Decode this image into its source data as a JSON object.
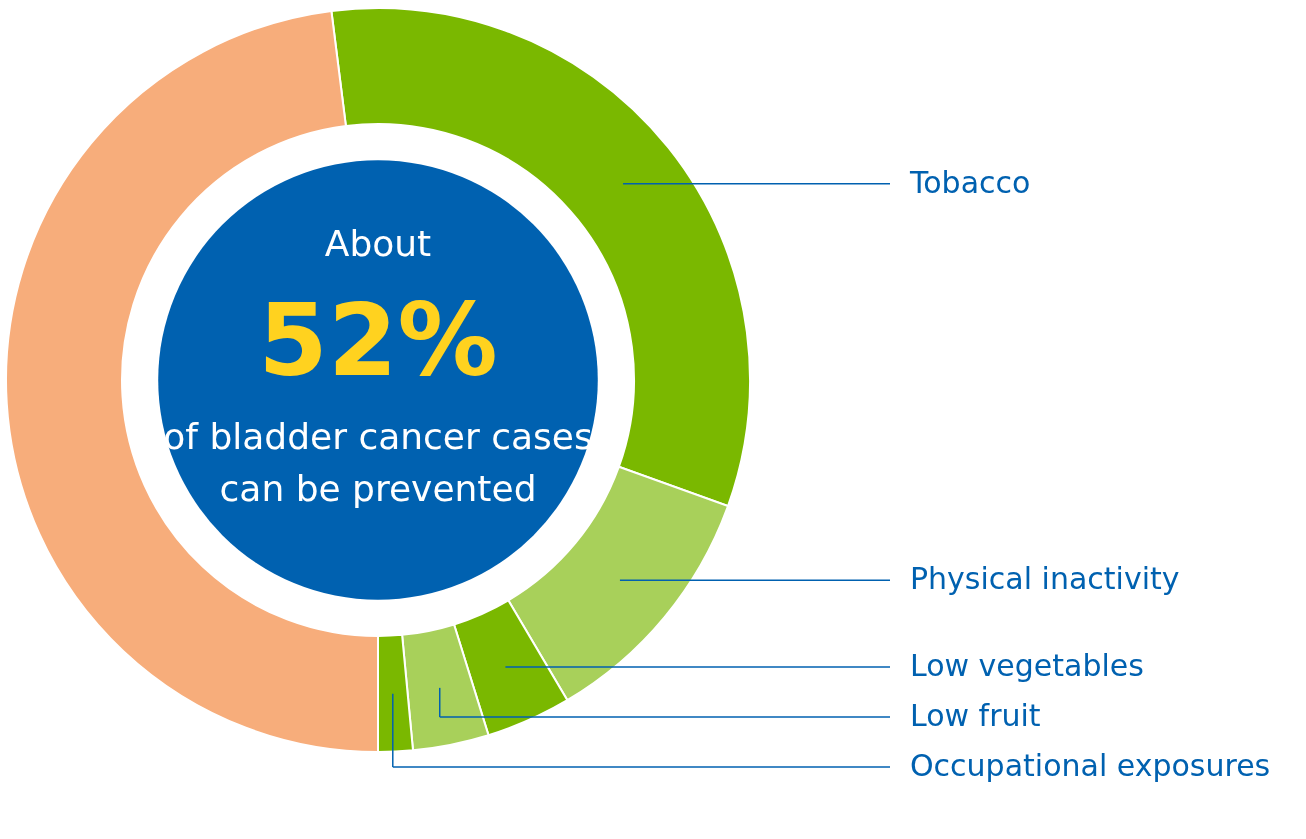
{
  "chart_data": {
    "type": "donut",
    "categories": [
      "Tobacco",
      "Physical inactivity",
      "Low vegetables",
      "Low fruit",
      "Occupational exposures",
      null
    ],
    "values": [
      32.5,
      11,
      3.7,
      3.3,
      1.5,
      48
    ],
    "colors": [
      "#7ab800",
      "#a8d05a",
      "#7ab800",
      "#a8d05a",
      "#7ab800",
      "#f7ad7b"
    ],
    "annotations": [
      "About",
      "52%",
      "of bladder cancer cases",
      "can be prevented"
    ]
  }
}
